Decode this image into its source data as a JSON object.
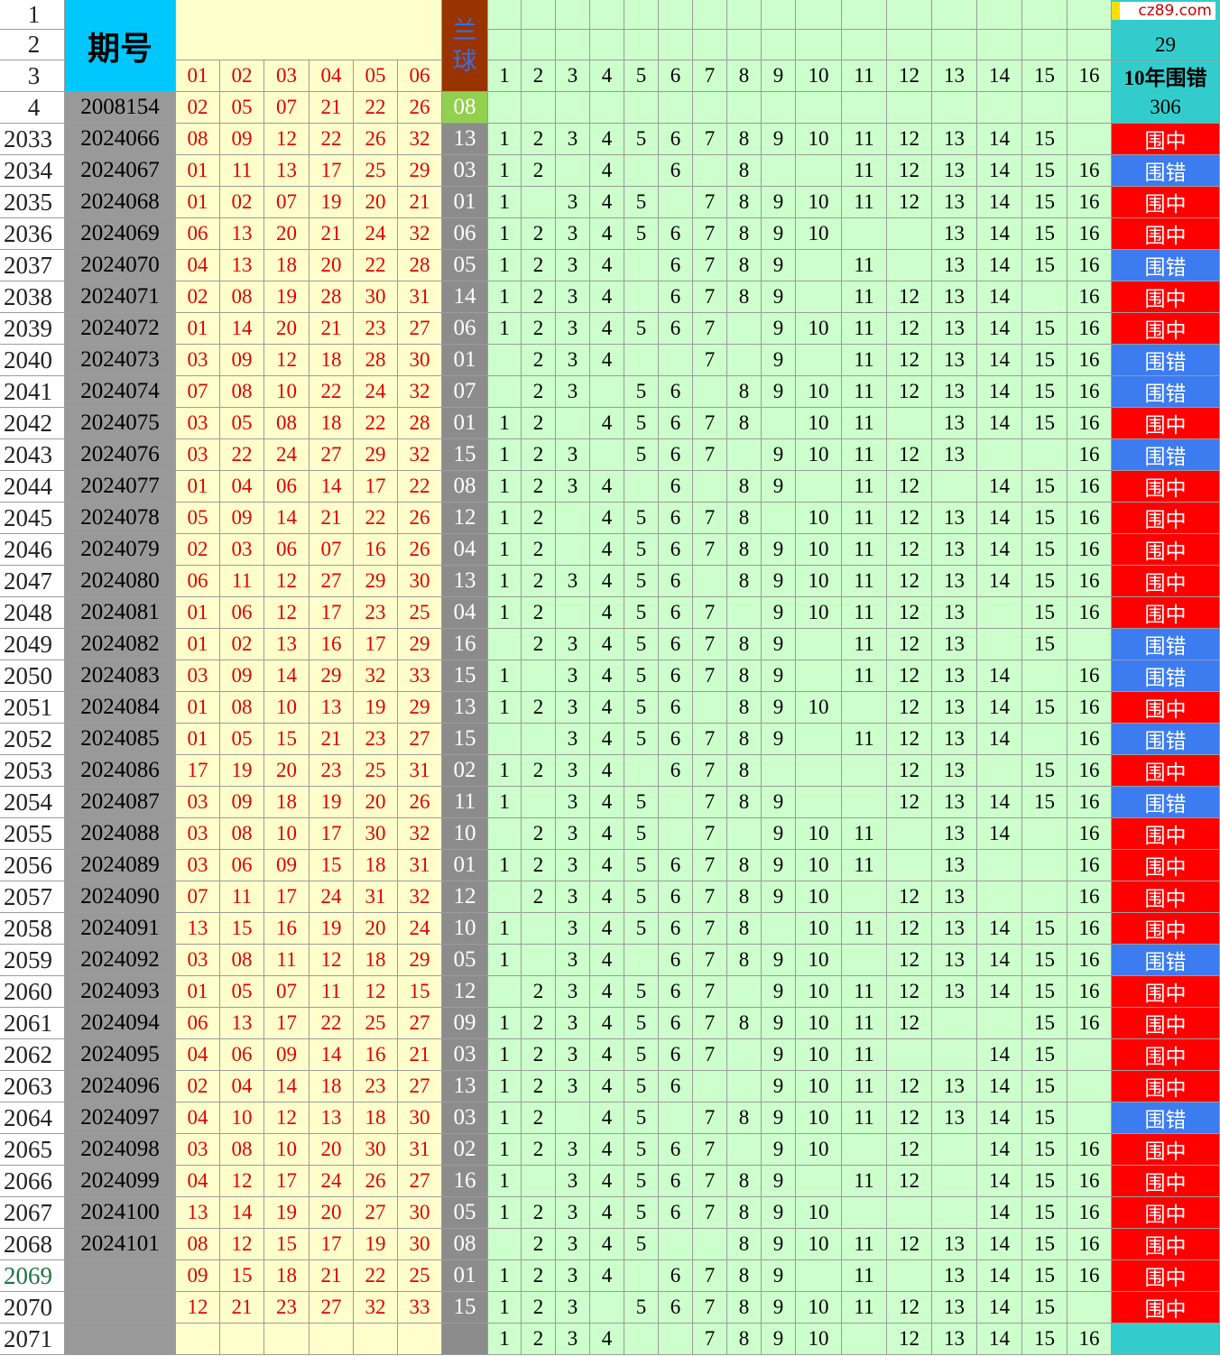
{
  "header": {
    "row_labels": [
      "1",
      "2",
      "3",
      "4"
    ],
    "period_title": "期号",
    "blue_title": "兰球",
    "red_labels": [
      "01",
      "02",
      "03",
      "04",
      "05",
      "06"
    ],
    "num_labels": [
      1,
      2,
      3,
      4,
      5,
      6,
      7,
      8,
      9,
      10,
      11,
      12,
      13,
      14,
      15,
      16
    ],
    "watermark": "cz89.com",
    "stat_values": [
      "29",
      "10年围错",
      "306"
    ]
  },
  "base_row": {
    "period": "2008154",
    "reds": [
      "02",
      "05",
      "07",
      "21",
      "22",
      "26"
    ],
    "blue": "08"
  },
  "result_colors": {
    "围中": "#ff0000",
    "围错": "#3d7cf0"
  },
  "rows": [
    {
      "label": "2033",
      "period": "2024066",
      "reds": [
        "08",
        "09",
        "12",
        "22",
        "26",
        "32"
      ],
      "blue": "13",
      "nums": [
        1,
        2,
        3,
        4,
        5,
        6,
        7,
        8,
        9,
        10,
        11,
        12,
        13,
        14,
        15
      ],
      "result": "围中"
    },
    {
      "label": "2034",
      "period": "2024067",
      "reds": [
        "01",
        "11",
        "13",
        "17",
        "25",
        "29"
      ],
      "blue": "03",
      "nums": [
        1,
        2,
        4,
        6,
        8,
        11,
        12,
        13,
        14,
        15,
        16
      ],
      "result": "围错"
    },
    {
      "label": "2035",
      "period": "2024068",
      "reds": [
        "01",
        "02",
        "07",
        "19",
        "20",
        "21"
      ],
      "blue": "01",
      "nums": [
        1,
        3,
        4,
        5,
        7,
        8,
        9,
        10,
        11,
        12,
        13,
        14,
        15,
        16
      ],
      "result": "围中"
    },
    {
      "label": "2036",
      "period": "2024069",
      "reds": [
        "06",
        "13",
        "20",
        "21",
        "24",
        "32"
      ],
      "blue": "06",
      "nums": [
        1,
        2,
        3,
        4,
        5,
        6,
        7,
        8,
        9,
        10,
        13,
        14,
        15,
        16
      ],
      "result": "围中"
    },
    {
      "label": "2037",
      "period": "2024070",
      "reds": [
        "04",
        "13",
        "18",
        "20",
        "22",
        "28"
      ],
      "blue": "05",
      "nums": [
        1,
        2,
        3,
        4,
        6,
        7,
        8,
        9,
        11,
        13,
        14,
        15,
        16
      ],
      "result": "围错"
    },
    {
      "label": "2038",
      "period": "2024071",
      "reds": [
        "02",
        "08",
        "19",
        "28",
        "30",
        "31"
      ],
      "blue": "14",
      "nums": [
        1,
        2,
        3,
        4,
        6,
        7,
        8,
        9,
        11,
        12,
        13,
        14,
        16
      ],
      "result": "围中"
    },
    {
      "label": "2039",
      "period": "2024072",
      "reds": [
        "01",
        "14",
        "20",
        "21",
        "23",
        "27"
      ],
      "blue": "06",
      "nums": [
        1,
        2,
        3,
        4,
        5,
        6,
        7,
        9,
        10,
        11,
        12,
        13,
        14,
        15,
        16
      ],
      "result": "围中"
    },
    {
      "label": "2040",
      "period": "2024073",
      "reds": [
        "03",
        "09",
        "12",
        "18",
        "28",
        "30"
      ],
      "blue": "01",
      "nums": [
        2,
        3,
        4,
        7,
        9,
        11,
        12,
        13,
        14,
        15,
        16
      ],
      "result": "围错"
    },
    {
      "label": "2041",
      "period": "2024074",
      "reds": [
        "07",
        "08",
        "10",
        "22",
        "24",
        "32"
      ],
      "blue": "07",
      "nums": [
        2,
        3,
        5,
        6,
        8,
        9,
        10,
        11,
        12,
        13,
        14,
        15,
        16
      ],
      "result": "围错"
    },
    {
      "label": "2042",
      "period": "2024075",
      "reds": [
        "03",
        "05",
        "08",
        "18",
        "22",
        "28"
      ],
      "blue": "01",
      "nums": [
        1,
        2,
        4,
        5,
        6,
        7,
        8,
        10,
        11,
        13,
        14,
        15,
        16
      ],
      "result": "围中"
    },
    {
      "label": "2043",
      "period": "2024076",
      "reds": [
        "03",
        "22",
        "24",
        "27",
        "29",
        "32"
      ],
      "blue": "15",
      "nums": [
        1,
        2,
        3,
        5,
        6,
        7,
        9,
        10,
        11,
        12,
        13,
        16
      ],
      "result": "围错"
    },
    {
      "label": "2044",
      "period": "2024077",
      "reds": [
        "01",
        "04",
        "06",
        "14",
        "17",
        "22"
      ],
      "blue": "08",
      "nums": [
        1,
        2,
        3,
        4,
        6,
        8,
        9,
        11,
        12,
        14,
        15,
        16
      ],
      "result": "围中"
    },
    {
      "label": "2045",
      "period": "2024078",
      "reds": [
        "05",
        "09",
        "14",
        "21",
        "22",
        "26"
      ],
      "blue": "12",
      "nums": [
        1,
        2,
        4,
        5,
        6,
        7,
        8,
        10,
        11,
        12,
        13,
        14,
        15,
        16
      ],
      "result": "围中"
    },
    {
      "label": "2046",
      "period": "2024079",
      "reds": [
        "02",
        "03",
        "06",
        "07",
        "16",
        "26"
      ],
      "blue": "04",
      "nums": [
        1,
        2,
        4,
        5,
        6,
        7,
        8,
        9,
        10,
        11,
        12,
        13,
        14,
        15,
        16
      ],
      "result": "围中"
    },
    {
      "label": "2047",
      "period": "2024080",
      "reds": [
        "06",
        "11",
        "12",
        "27",
        "29",
        "30"
      ],
      "blue": "13",
      "nums": [
        1,
        2,
        3,
        4,
        5,
        6,
        8,
        9,
        10,
        11,
        12,
        13,
        14,
        15,
        16
      ],
      "result": "围中"
    },
    {
      "label": "2048",
      "period": "2024081",
      "reds": [
        "01",
        "06",
        "12",
        "17",
        "23",
        "25"
      ],
      "blue": "04",
      "nums": [
        1,
        2,
        4,
        5,
        6,
        7,
        9,
        10,
        11,
        12,
        13,
        15,
        16
      ],
      "result": "围中"
    },
    {
      "label": "2049",
      "period": "2024082",
      "reds": [
        "01",
        "02",
        "13",
        "16",
        "17",
        "29"
      ],
      "blue": "16",
      "nums": [
        2,
        3,
        4,
        5,
        6,
        7,
        8,
        9,
        11,
        12,
        13,
        15
      ],
      "result": "围错"
    },
    {
      "label": "2050",
      "period": "2024083",
      "reds": [
        "03",
        "09",
        "14",
        "29",
        "32",
        "33"
      ],
      "blue": "15",
      "nums": [
        1,
        3,
        4,
        5,
        6,
        7,
        8,
        9,
        11,
        12,
        13,
        14,
        16
      ],
      "result": "围错"
    },
    {
      "label": "2051",
      "period": "2024084",
      "reds": [
        "01",
        "08",
        "10",
        "13",
        "19",
        "29"
      ],
      "blue": "13",
      "nums": [
        1,
        2,
        3,
        4,
        5,
        6,
        8,
        9,
        10,
        12,
        13,
        14,
        15,
        16
      ],
      "result": "围中"
    },
    {
      "label": "2052",
      "period": "2024085",
      "reds": [
        "01",
        "05",
        "15",
        "21",
        "23",
        "27"
      ],
      "blue": "15",
      "nums": [
        3,
        4,
        5,
        6,
        7,
        8,
        9,
        11,
        12,
        13,
        14,
        16
      ],
      "result": "围错"
    },
    {
      "label": "2053",
      "period": "2024086",
      "reds": [
        "17",
        "19",
        "20",
        "23",
        "25",
        "31"
      ],
      "blue": "02",
      "nums": [
        1,
        2,
        3,
        4,
        6,
        7,
        8,
        12,
        13,
        15,
        16
      ],
      "result": "围中"
    },
    {
      "label": "2054",
      "period": "2024087",
      "reds": [
        "03",
        "09",
        "18",
        "19",
        "20",
        "26"
      ],
      "blue": "11",
      "nums": [
        1,
        3,
        4,
        5,
        7,
        8,
        9,
        12,
        13,
        14,
        15,
        16
      ],
      "result": "围错"
    },
    {
      "label": "2055",
      "period": "2024088",
      "reds": [
        "03",
        "08",
        "10",
        "17",
        "30",
        "32"
      ],
      "blue": "10",
      "nums": [
        2,
        3,
        4,
        5,
        7,
        9,
        10,
        11,
        13,
        14,
        16
      ],
      "result": "围中"
    },
    {
      "label": "2056",
      "period": "2024089",
      "reds": [
        "03",
        "06",
        "09",
        "15",
        "18",
        "31"
      ],
      "blue": "01",
      "nums": [
        1,
        2,
        3,
        4,
        5,
        6,
        7,
        8,
        9,
        10,
        11,
        13,
        16
      ],
      "result": "围中"
    },
    {
      "label": "2057",
      "period": "2024090",
      "reds": [
        "07",
        "11",
        "17",
        "24",
        "31",
        "32"
      ],
      "blue": "12",
      "nums": [
        2,
        3,
        4,
        5,
        6,
        7,
        8,
        9,
        10,
        12,
        13,
        16
      ],
      "result": "围中"
    },
    {
      "label": "2058",
      "period": "2024091",
      "reds": [
        "13",
        "15",
        "16",
        "19",
        "20",
        "24"
      ],
      "blue": "10",
      "nums": [
        1,
        3,
        4,
        5,
        6,
        7,
        8,
        10,
        11,
        12,
        13,
        14,
        15,
        16
      ],
      "result": "围中"
    },
    {
      "label": "2059",
      "period": "2024092",
      "reds": [
        "03",
        "08",
        "11",
        "12",
        "18",
        "29"
      ],
      "blue": "05",
      "nums": [
        1,
        3,
        4,
        6,
        7,
        8,
        9,
        10,
        12,
        13,
        14,
        15,
        16
      ],
      "result": "围错"
    },
    {
      "label": "2060",
      "period": "2024093",
      "reds": [
        "01",
        "05",
        "07",
        "11",
        "12",
        "15"
      ],
      "blue": "12",
      "nums": [
        2,
        3,
        4,
        5,
        6,
        7,
        9,
        10,
        11,
        12,
        13,
        14,
        15,
        16
      ],
      "result": "围中"
    },
    {
      "label": "2061",
      "period": "2024094",
      "reds": [
        "06",
        "13",
        "17",
        "22",
        "25",
        "27"
      ],
      "blue": "09",
      "nums": [
        1,
        2,
        3,
        4,
        5,
        6,
        7,
        8,
        9,
        10,
        11,
        12,
        15,
        16
      ],
      "result": "围中"
    },
    {
      "label": "2062",
      "period": "2024095",
      "reds": [
        "04",
        "06",
        "09",
        "14",
        "16",
        "21"
      ],
      "blue": "03",
      "nums": [
        1,
        2,
        3,
        4,
        5,
        6,
        7,
        9,
        10,
        11,
        14,
        15
      ],
      "result": "围中"
    },
    {
      "label": "2063",
      "period": "2024096",
      "reds": [
        "02",
        "04",
        "14",
        "18",
        "23",
        "27"
      ],
      "blue": "13",
      "nums": [
        1,
        2,
        3,
        4,
        5,
        6,
        9,
        10,
        11,
        12,
        13,
        14,
        15
      ],
      "result": "围中"
    },
    {
      "label": "2064",
      "period": "2024097",
      "reds": [
        "04",
        "10",
        "12",
        "13",
        "18",
        "30"
      ],
      "blue": "03",
      "nums": [
        1,
        2,
        4,
        5,
        7,
        8,
        9,
        10,
        11,
        12,
        13,
        14,
        15
      ],
      "result": "围错"
    },
    {
      "label": "2065",
      "period": "2024098",
      "reds": [
        "03",
        "08",
        "10",
        "20",
        "30",
        "31"
      ],
      "blue": "02",
      "nums": [
        1,
        2,
        3,
        4,
        5,
        6,
        7,
        9,
        10,
        12,
        14,
        15,
        16
      ],
      "result": "围中"
    },
    {
      "label": "2066",
      "period": "2024099",
      "reds": [
        "04",
        "12",
        "17",
        "24",
        "26",
        "27"
      ],
      "blue": "16",
      "nums": [
        1,
        3,
        4,
        5,
        6,
        7,
        8,
        9,
        11,
        12,
        14,
        15,
        16
      ],
      "result": "围中"
    },
    {
      "label": "2067",
      "period": "2024100",
      "reds": [
        "13",
        "14",
        "19",
        "20",
        "27",
        "30"
      ],
      "blue": "05",
      "nums": [
        1,
        2,
        3,
        4,
        5,
        6,
        7,
        8,
        9,
        10,
        14,
        15,
        16
      ],
      "result": "围中"
    },
    {
      "label": "2068",
      "period": "2024101",
      "reds": [
        "08",
        "12",
        "15",
        "17",
        "19",
        "30"
      ],
      "blue": "08",
      "nums": [
        2,
        3,
        4,
        5,
        8,
        9,
        10,
        11,
        12,
        13,
        14,
        15,
        16
      ],
      "result": "围中"
    },
    {
      "label": "2069",
      "reds": [
        "09",
        "15",
        "18",
        "21",
        "22",
        "25"
      ],
      "blue": "01",
      "nums": [
        1,
        2,
        3,
        4,
        6,
        7,
        8,
        9,
        11,
        13,
        14,
        15,
        16
      ],
      "result": "围中"
    },
    {
      "label": "2070",
      "reds": [
        "12",
        "21",
        "23",
        "27",
        "32",
        "33"
      ],
      "blue": "15",
      "nums": [
        1,
        2,
        3,
        5,
        6,
        7,
        8,
        9,
        10,
        11,
        12,
        13,
        14,
        15
      ],
      "result": "围中"
    },
    {
      "label": "2071",
      "reds": [],
      "nums": [
        1,
        2,
        3,
        4,
        7,
        8,
        9,
        10,
        12,
        13,
        14,
        15,
        16
      ]
    }
  ]
}
